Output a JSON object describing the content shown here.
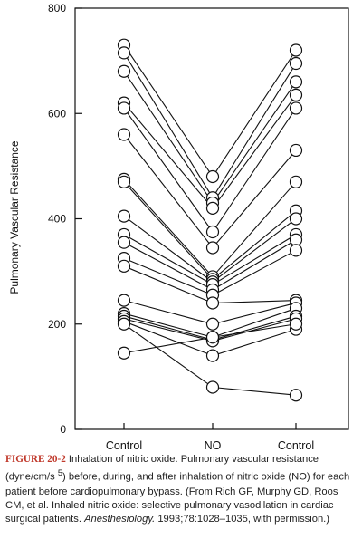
{
  "chart_data": {
    "type": "line",
    "title": "",
    "ylabel": "Pulmonary Vascular Resistance",
    "xlabel": "",
    "categories": [
      "Control",
      "NO",
      "Control"
    ],
    "ylim": [
      0,
      800
    ],
    "yticks": [
      0,
      200,
      400,
      600,
      800
    ],
    "grid": false,
    "series": [
      {
        "values": [
          730,
          480,
          720
        ]
      },
      {
        "values": [
          715,
          440,
          695
        ]
      },
      {
        "values": [
          680,
          430,
          660
        ]
      },
      {
        "values": [
          620,
          420,
          635
        ]
      },
      {
        "values": [
          610,
          375,
          610
        ]
      },
      {
        "values": [
          560,
          345,
          530
        ]
      },
      {
        "values": [
          475,
          290,
          470
        ]
      },
      {
        "values": [
          470,
          285,
          415
        ]
      },
      {
        "values": [
          405,
          280,
          400
        ]
      },
      {
        "values": [
          370,
          275,
          370
        ]
      },
      {
        "values": [
          355,
          265,
          360
        ]
      },
      {
        "values": [
          325,
          255,
          340
        ]
      },
      {
        "values": [
          310,
          240,
          245
        ]
      },
      {
        "values": [
          245,
          200,
          240
        ]
      },
      {
        "values": [
          220,
          175,
          230
        ]
      },
      {
        "values": [
          215,
          170,
          215
        ]
      },
      {
        "values": [
          210,
          168,
          210
        ]
      },
      {
        "values": [
          205,
          140,
          190
        ]
      },
      {
        "values": [
          200,
          80,
          65
        ]
      },
      {
        "values": [
          145,
          175,
          200
        ]
      }
    ]
  },
  "caption": {
    "figure_label": "FIGURE 20-2",
    "text_before_sup": " Inhalation of nitric oxide. Pulmonary vascular resistance (dyne/cm/s ",
    "sup": "5",
    "text_after_sup": ") before, during, and after inhalation of nitric oxide (NO) for each patient before cardiopulmonary bypass. (From Rich GF, Murphy GD, Roos CM, et al. Inhaled nitric oxide: selective pulmonary vasodilation in cardiac surgical patients. ",
    "journal": "Anesthesiology.",
    "text_end": " 1993;78:1028–1035, with permission.)"
  },
  "colors": {
    "axis": "#111111",
    "figure_label": "#c0392b"
  }
}
